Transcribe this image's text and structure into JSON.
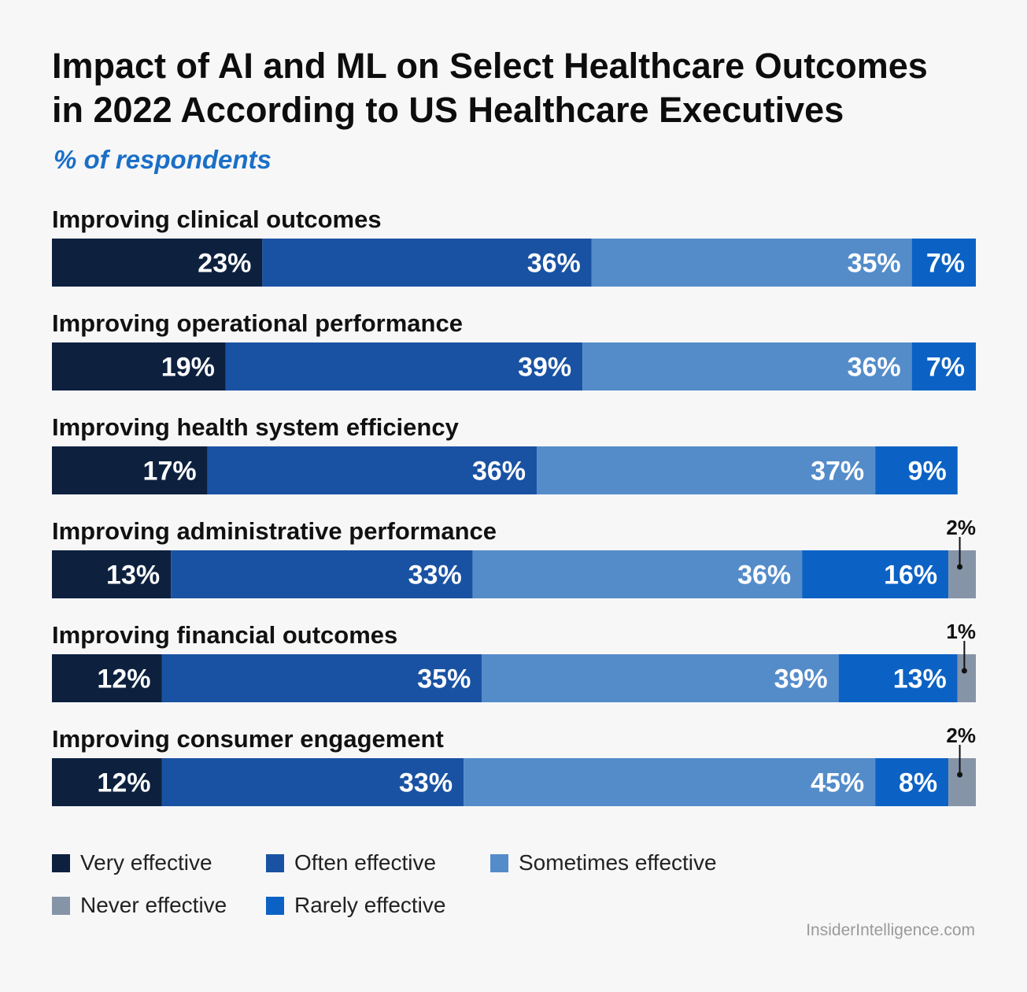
{
  "title_lines": [
    "Impact of AI and ML on Select Healthcare Outcomes",
    "in 2022 According to US Healthcare Executives"
  ],
  "subtitle": "% of respondents",
  "source": "InsiderIntelligence.com",
  "colors": {
    "very": "#0d213f",
    "often": "#1a52a3",
    "sometimes": "#548cca",
    "rarely": "#0c62c4",
    "never": "#8694a8"
  },
  "legend": [
    {
      "key": "very",
      "label": "Very effective"
    },
    {
      "key": "often",
      "label": "Often effective"
    },
    {
      "key": "sometimes",
      "label": "Sometimes effective"
    },
    {
      "key": "never",
      "label": "Never effective"
    },
    {
      "key": "rarely",
      "label": "Rarely effective"
    }
  ],
  "chart_data": {
    "type": "bar",
    "orientation": "horizontal",
    "stacked": true,
    "title": "Impact of AI and ML on Select Healthcare Outcomes in 2022 According to US Healthcare Executives",
    "subtitle": "% of respondents",
    "categories": [
      "Improving clinical outcomes",
      "Improving operational performance",
      "Improving health system efficiency",
      "Improving administrative performance",
      "Improving financial outcomes",
      "Improving consumer engagement"
    ],
    "series": [
      {
        "name": "Very effective",
        "key": "very",
        "values": [
          23,
          19,
          17,
          13,
          12,
          12
        ]
      },
      {
        "name": "Often effective",
        "key": "often",
        "values": [
          36,
          39,
          36,
          33,
          35,
          33
        ]
      },
      {
        "name": "Sometimes effective",
        "key": "sometimes",
        "values": [
          35,
          36,
          37,
          36,
          39,
          45
        ]
      },
      {
        "name": "Rarely effective",
        "key": "rarely",
        "values": [
          7,
          7,
          9,
          16,
          13,
          8
        ]
      },
      {
        "name": "Never effective",
        "key": "never",
        "values": [
          0,
          0,
          0,
          2,
          1,
          2
        ]
      }
    ],
    "unit": "%",
    "xlim": [
      0,
      101
    ],
    "source": "InsiderIntelligence.com"
  }
}
